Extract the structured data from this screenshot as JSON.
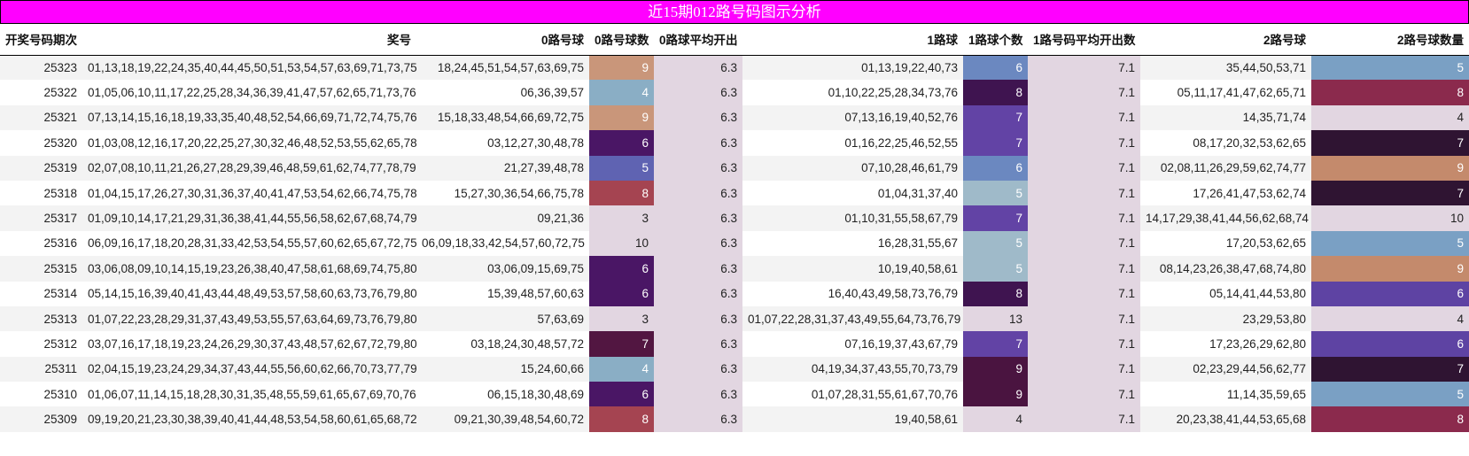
{
  "title": "近15期012路号码图示分析",
  "columns": [
    "开奖号码期次",
    "奖号",
    "0路号球",
    "0路号球数",
    "0路球平均开出",
    "1路球",
    "1路球个数",
    "1路号码平均开出数",
    "2路号球",
    "2路号球数量"
  ],
  "colors": {
    "title_bg": "#ff00ff",
    "avg_bg": "#e2d6e1",
    "row_odd": "#f3f3f3",
    "row_even": "#ffffff"
  },
  "rows": [
    {
      "period": "25323",
      "numbers": "01,13,18,19,22,24,35,40,44,45,50,51,53,54,57,63,69,71,73,75",
      "r0": "18,24,45,51,54,57,63,69,75",
      "r0_count": "9",
      "r0_color": "#c9967a",
      "r0_avg": "6.3",
      "r1": "01,13,19,22,40,73",
      "r1_count": "6",
      "r1_color": "#6b88c0",
      "r1_avg": "7.1",
      "r2": "35,44,50,53,71",
      "r2_count": "5",
      "r2_color": "#7aa0c4"
    },
    {
      "period": "25322",
      "numbers": "01,05,06,10,11,17,22,25,28,34,36,39,41,47,57,62,65,71,73,76",
      "r0": "06,36,39,57",
      "r0_count": "4",
      "r0_color": "#8aaec5",
      "r0_avg": "6.3",
      "r1": "01,10,22,25,28,34,73,76",
      "r1_count": "8",
      "r1_color": "#3f1450",
      "r1_avg": "7.1",
      "r2": "05,11,17,41,47,62,65,71",
      "r2_count": "8",
      "r2_color": "#8b2a4d"
    },
    {
      "period": "25321",
      "numbers": "07,13,14,15,16,18,19,33,35,40,48,52,54,66,69,71,72,74,75,76",
      "r0": "15,18,33,48,54,66,69,72,75",
      "r0_count": "9",
      "r0_color": "#c9967a",
      "r0_avg": "6.3",
      "r1": "07,13,16,19,40,52,76",
      "r1_count": "7",
      "r1_color": "#6243a5",
      "r1_avg": "7.1",
      "r2": "14,35,71,74",
      "r2_count": "4",
      "r2_color": "#e2d6e1"
    },
    {
      "period": "25320",
      "numbers": "01,03,08,12,16,17,20,22,25,27,30,32,46,48,52,53,55,62,65,78",
      "r0": "03,12,27,30,48,78",
      "r0_count": "6",
      "r0_color": "#4a1665",
      "r0_avg": "6.3",
      "r1": "01,16,22,25,46,52,55",
      "r1_count": "7",
      "r1_color": "#6243a5",
      "r1_avg": "7.1",
      "r2": "08,17,20,32,53,62,65",
      "r2_count": "7",
      "r2_color": "#2f1432"
    },
    {
      "period": "25319",
      "numbers": "02,07,08,10,11,21,26,27,28,29,39,46,48,59,61,62,74,77,78,79",
      "r0": "21,27,39,48,78",
      "r0_count": "5",
      "r0_color": "#5f63b2",
      "r0_avg": "6.3",
      "r1": "07,10,28,46,61,79",
      "r1_count": "6",
      "r1_color": "#6b88c0",
      "r1_avg": "7.1",
      "r2": "02,08,11,26,29,59,62,74,77",
      "r2_count": "9",
      "r2_color": "#c48a6c"
    },
    {
      "period": "25318",
      "numbers": "01,04,15,17,26,27,30,31,36,37,40,41,47,53,54,62,66,74,75,78",
      "r0": "15,27,30,36,54,66,75,78",
      "r0_count": "8",
      "r0_color": "#a54451",
      "r0_avg": "6.3",
      "r1": "01,04,31,37,40",
      "r1_count": "5",
      "r1_color": "#9fbac9",
      "r1_avg": "7.1",
      "r2": "17,26,41,47,53,62,74",
      "r2_count": "7",
      "r2_color": "#2f1432"
    },
    {
      "period": "25317",
      "numbers": "01,09,10,14,17,21,29,31,36,38,41,44,55,56,58,62,67,68,74,79",
      "r0": "09,21,36",
      "r0_count": "3",
      "r0_color": "#e2d6e1",
      "r0_avg": "6.3",
      "r1": "01,10,31,55,58,67,79",
      "r1_count": "7",
      "r1_color": "#6243a5",
      "r1_avg": "7.1",
      "r2": "14,17,29,38,41,44,56,62,68,74",
      "r2_count": "10",
      "r2_color": "#e2d6e1"
    },
    {
      "period": "25316",
      "numbers": "06,09,16,17,18,20,28,31,33,42,53,54,55,57,60,62,65,67,72,75",
      "r0": "06,09,18,33,42,54,57,60,72,75",
      "r0_count": "10",
      "r0_color": "#e2d6e1",
      "r0_avg": "6.3",
      "r1": "16,28,31,55,67",
      "r1_count": "5",
      "r1_color": "#9fbac9",
      "r1_avg": "7.1",
      "r2": "17,20,53,62,65",
      "r2_count": "5",
      "r2_color": "#7aa0c4"
    },
    {
      "period": "25315",
      "numbers": "03,06,08,09,10,14,15,19,23,26,38,40,47,58,61,68,69,74,75,80",
      "r0": "03,06,09,15,69,75",
      "r0_count": "6",
      "r0_color": "#4a1665",
      "r0_avg": "6.3",
      "r1": "10,19,40,58,61",
      "r1_count": "5",
      "r1_color": "#9fbac9",
      "r1_avg": "7.1",
      "r2": "08,14,23,26,38,47,68,74,80",
      "r2_count": "9",
      "r2_color": "#c48a6c"
    },
    {
      "period": "25314",
      "numbers": "05,14,15,16,39,40,41,43,44,48,49,53,57,58,60,63,73,76,79,80",
      "r0": "15,39,48,57,60,63",
      "r0_count": "6",
      "r0_color": "#4a1665",
      "r0_avg": "6.3",
      "r1": "16,40,43,49,58,73,76,79",
      "r1_count": "8",
      "r1_color": "#3f1450",
      "r1_avg": "7.1",
      "r2": "05,14,41,44,53,80",
      "r2_count": "6",
      "r2_color": "#5e43a3"
    },
    {
      "period": "25313",
      "numbers": "01,07,22,23,28,29,31,37,43,49,53,55,57,63,64,69,73,76,79,80",
      "r0": "57,63,69",
      "r0_count": "3",
      "r0_color": "#e2d6e1",
      "r0_avg": "6.3",
      "r1": "01,07,22,28,31,37,43,49,55,64,73,76,79",
      "r1_count": "13",
      "r1_color": "#e2d6e1",
      "r1_avg": "7.1",
      "r2": "23,29,53,80",
      "r2_count": "4",
      "r2_color": "#e2d6e1"
    },
    {
      "period": "25312",
      "numbers": "03,07,16,17,18,19,23,24,26,29,30,37,43,48,57,62,67,72,79,80",
      "r0": "03,18,24,30,48,57,72",
      "r0_count": "7",
      "r0_color": "#521641",
      "r0_avg": "6.3",
      "r1": "07,16,19,37,43,67,79",
      "r1_count": "7",
      "r1_color": "#6243a5",
      "r1_avg": "7.1",
      "r2": "17,23,26,29,62,80",
      "r2_count": "6",
      "r2_color": "#5e43a3"
    },
    {
      "period": "25311",
      "numbers": "02,04,15,19,23,24,29,34,37,43,44,55,56,60,62,66,70,73,77,79",
      "r0": "15,24,60,66",
      "r0_count": "4",
      "r0_color": "#8aaec5",
      "r0_avg": "6.3",
      "r1": "04,19,34,37,43,55,70,73,79",
      "r1_count": "9",
      "r1_color": "#4a1440",
      "r1_avg": "7.1",
      "r2": "02,23,29,44,56,62,77",
      "r2_count": "7",
      "r2_color": "#2f1432"
    },
    {
      "period": "25310",
      "numbers": "01,06,07,11,14,15,18,28,30,31,35,48,55,59,61,65,67,69,70,76",
      "r0": "06,15,18,30,48,69",
      "r0_count": "6",
      "r0_color": "#4a1665",
      "r0_avg": "6.3",
      "r1": "01,07,28,31,55,61,67,70,76",
      "r1_count": "9",
      "r1_color": "#4a1440",
      "r1_avg": "7.1",
      "r2": "11,14,35,59,65",
      "r2_count": "5",
      "r2_color": "#7aa0c4"
    },
    {
      "period": "25309",
      "numbers": "09,19,20,21,23,30,38,39,40,41,44,48,53,54,58,60,61,65,68,72",
      "r0": "09,21,30,39,48,54,60,72",
      "r0_count": "8",
      "r0_color": "#a54451",
      "r0_avg": "6.3",
      "r1": "19,40,58,61",
      "r1_count": "4",
      "r1_color": "#e2d6e1",
      "r1_avg": "7.1",
      "r2": "20,23,38,41,44,53,65,68",
      "r2_count": "8",
      "r2_color": "#8b2a4d"
    }
  ]
}
